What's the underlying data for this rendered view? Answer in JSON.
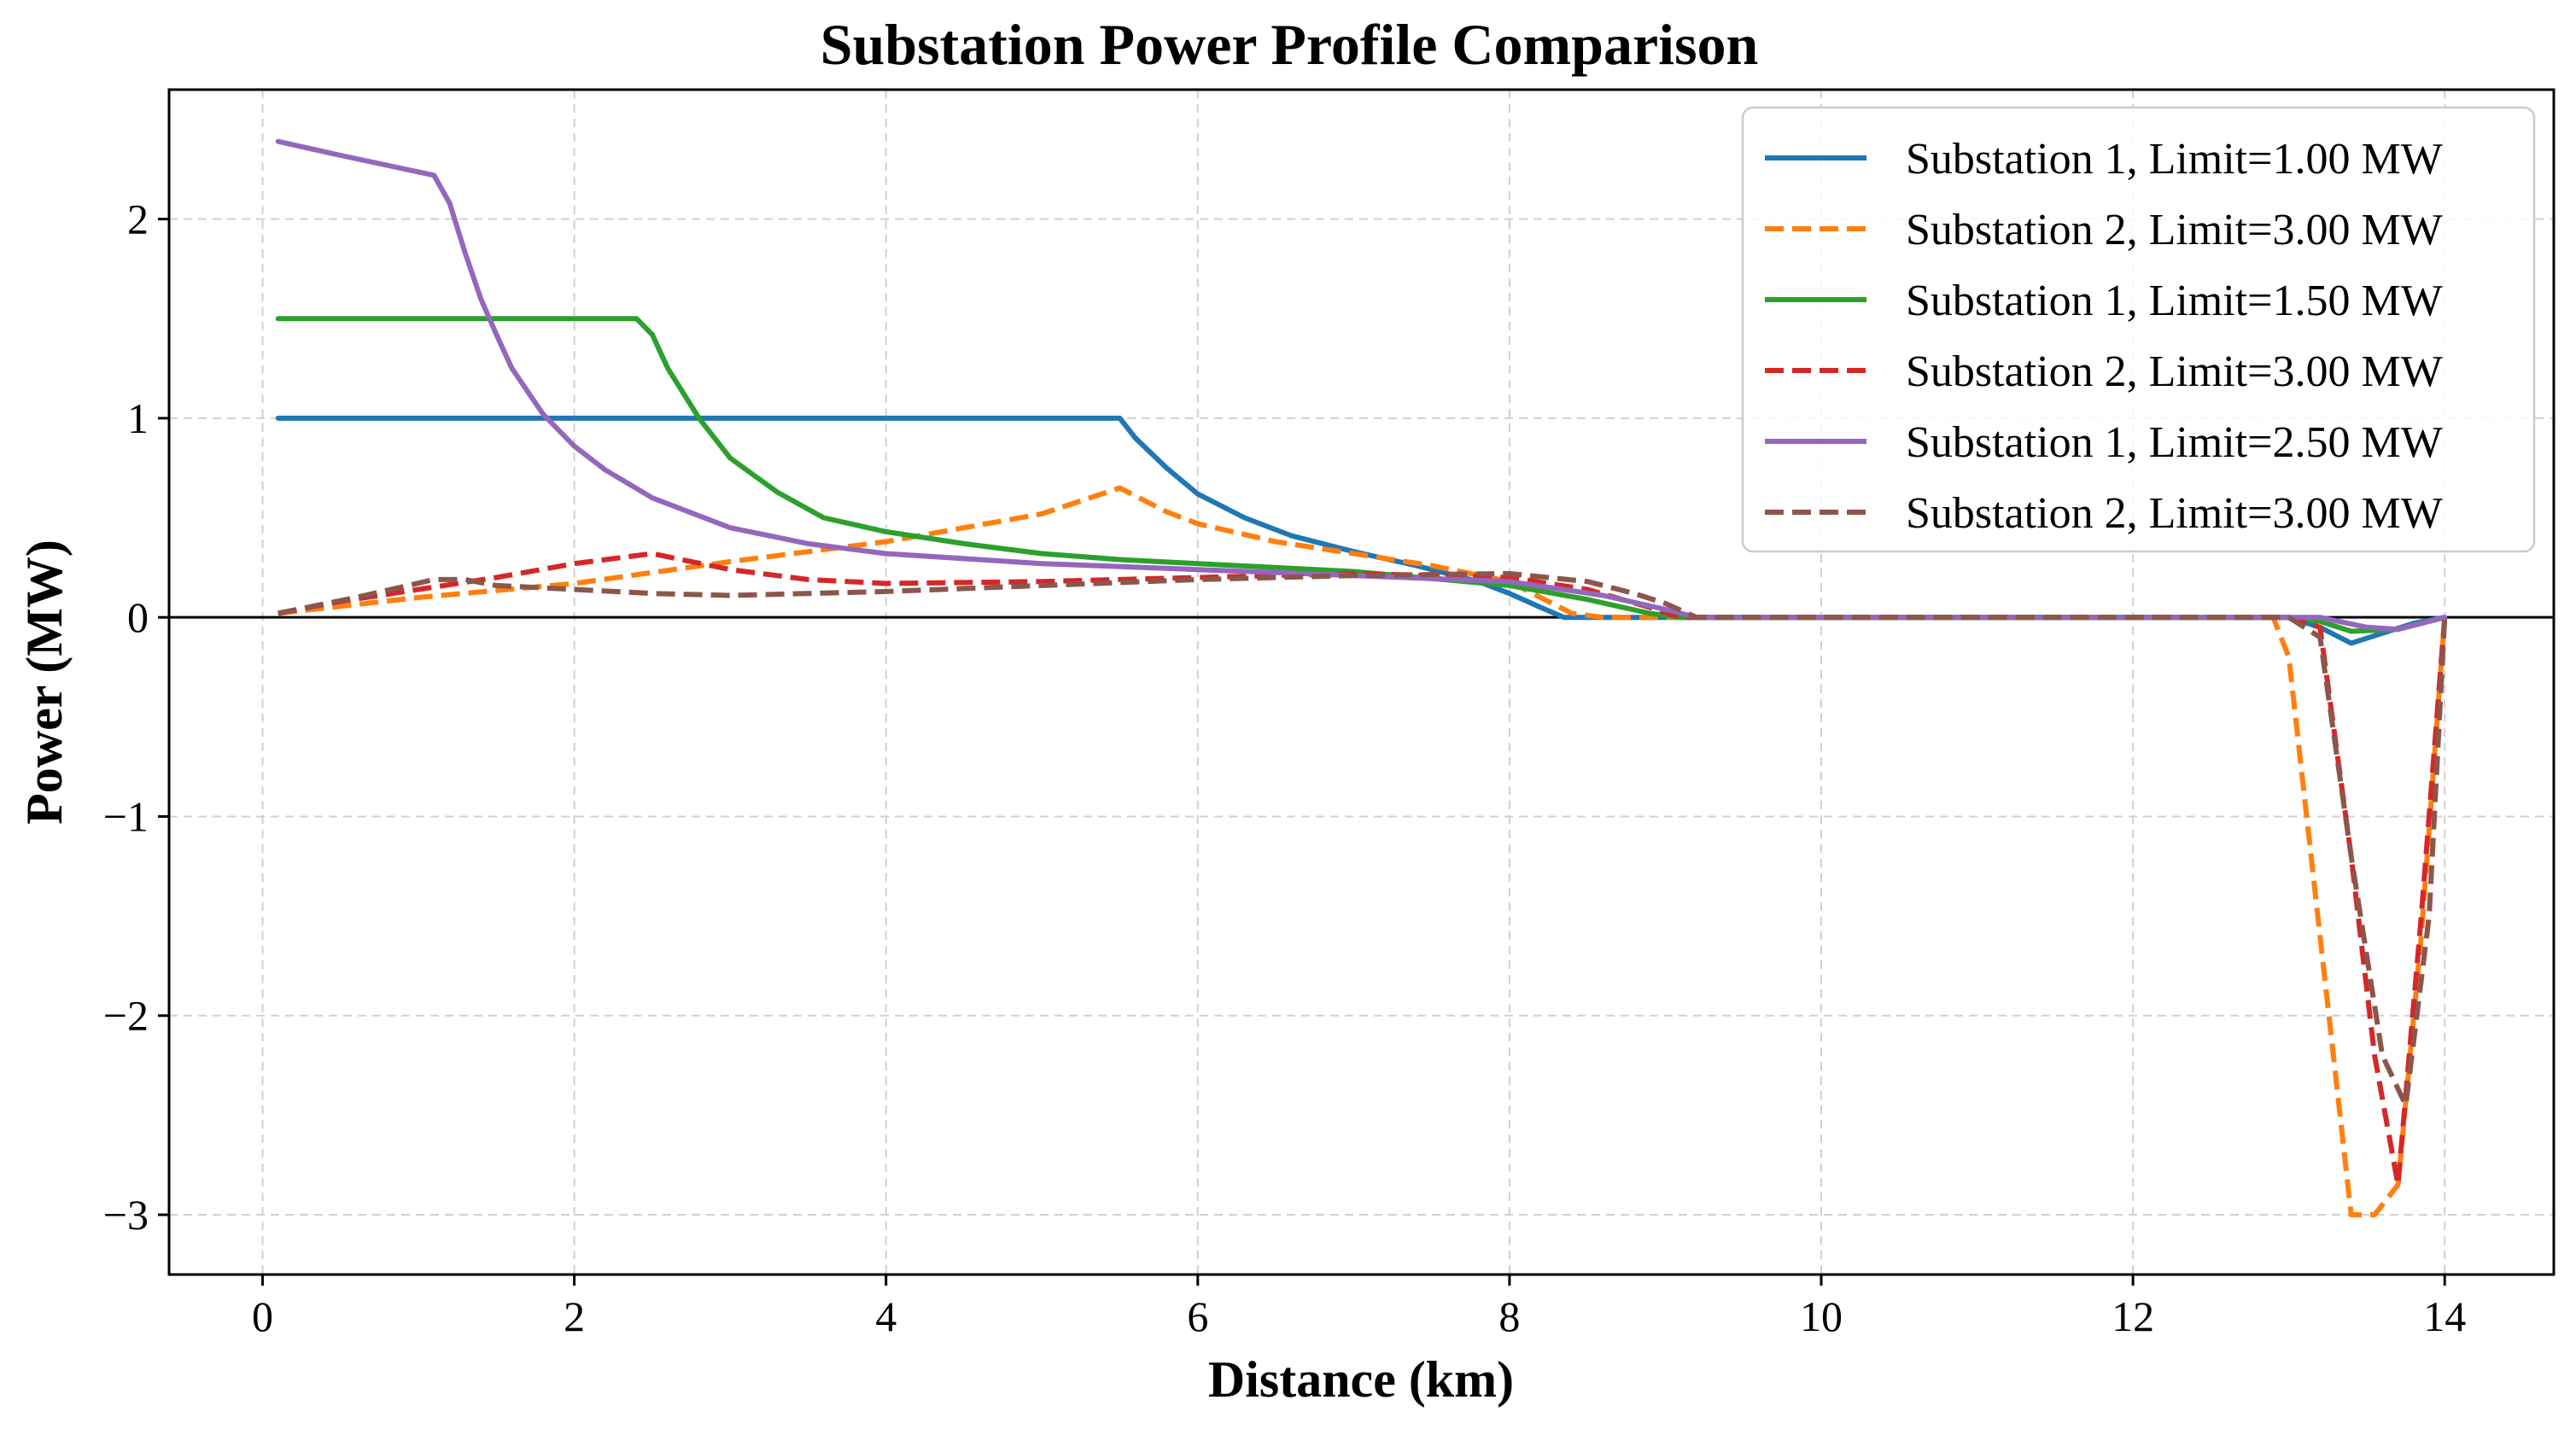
{
  "chart_data": {
    "type": "line",
    "title": "Substation Power Profile Comparison",
    "xlabel": "Distance (km)",
    "ylabel": "Power (MW)",
    "xlim": [
      -0.6,
      14.7
    ],
    "ylim": [
      -3.3,
      2.65
    ],
    "xticks": [
      0,
      2,
      4,
      6,
      8,
      10,
      12,
      14
    ],
    "yticks": [
      -3,
      -2,
      -1,
      0,
      1,
      2
    ],
    "xtick_labels": [
      "0",
      "2",
      "4",
      "6",
      "8",
      "10",
      "12",
      "14"
    ],
    "ytick_labels": [
      "−3",
      "−2",
      "−1",
      "0",
      "1",
      "2"
    ],
    "grid": true,
    "zero_line": true,
    "legend_position": "top-right",
    "series": [
      {
        "name": "Substation 1, Limit=1.00 MW",
        "color": "#1f77b4",
        "dash": "solid",
        "x": [
          0.1,
          1.0,
          2.0,
          3.0,
          4.0,
          5.0,
          5.5,
          5.6,
          5.8,
          6.0,
          6.3,
          6.6,
          7.0,
          7.4,
          7.8,
          8.0,
          8.2,
          8.35,
          9.0,
          10.0,
          11.0,
          12.0,
          13.0,
          13.2,
          13.4,
          13.6,
          13.8,
          14.0
        ],
        "values": [
          1.0,
          1.0,
          1.0,
          1.0,
          1.0,
          1.0,
          1.0,
          0.9,
          0.75,
          0.62,
          0.5,
          0.41,
          0.33,
          0.26,
          0.18,
          0.12,
          0.05,
          0.0,
          0.0,
          0.0,
          0.0,
          0.0,
          0.0,
          -0.05,
          -0.13,
          -0.08,
          -0.03,
          0.0
        ]
      },
      {
        "name": "Substation 2, Limit=3.00 MW",
        "color": "#ff7f0e",
        "dash": "dashed",
        "x": [
          0.1,
          1.0,
          2.0,
          3.0,
          4.0,
          5.0,
          5.5,
          5.8,
          6.0,
          6.5,
          7.0,
          7.5,
          8.0,
          8.2,
          8.4,
          8.6,
          9.0,
          10.0,
          11.0,
          12.0,
          12.9,
          13.0,
          13.2,
          13.4,
          13.55,
          13.7,
          13.85,
          14.0
        ],
        "values": [
          0.02,
          0.1,
          0.17,
          0.28,
          0.38,
          0.52,
          0.65,
          0.53,
          0.47,
          0.38,
          0.32,
          0.26,
          0.18,
          0.1,
          0.02,
          0.0,
          0.0,
          0.0,
          0.0,
          0.0,
          0.0,
          -0.2,
          -1.6,
          -3.0,
          -3.0,
          -2.85,
          -1.6,
          0.0
        ]
      },
      {
        "name": "Substation 1, Limit=1.50 MW",
        "color": "#2ca02c",
        "dash": "solid",
        "x": [
          0.1,
          1.0,
          2.0,
          2.4,
          2.5,
          2.6,
          2.8,
          3.0,
          3.3,
          3.6,
          4.0,
          4.5,
          5.0,
          5.5,
          6.0,
          7.0,
          8.0,
          8.5,
          8.9,
          9.1,
          10.0,
          11.0,
          12.0,
          13.0,
          13.2,
          13.4,
          13.7,
          14.0
        ],
        "values": [
          1.5,
          1.5,
          1.5,
          1.5,
          1.42,
          1.25,
          1.0,
          0.8,
          0.63,
          0.5,
          0.43,
          0.37,
          0.32,
          0.29,
          0.27,
          0.23,
          0.16,
          0.09,
          0.02,
          0.0,
          0.0,
          0.0,
          0.0,
          0.0,
          -0.02,
          -0.07,
          -0.06,
          0.0
        ]
      },
      {
        "name": "Substation 2, Limit=3.00 MW",
        "color": "#d62728",
        "dash": "dashed",
        "x": [
          0.1,
          0.5,
          1.0,
          1.5,
          2.0,
          2.5,
          3.0,
          3.5,
          4.0,
          5.0,
          6.0,
          7.0,
          8.0,
          8.5,
          8.9,
          9.1,
          10.0,
          11.0,
          12.0,
          13.0,
          13.2,
          13.4,
          13.55,
          13.7,
          13.85,
          14.0
        ],
        "values": [
          0.02,
          0.08,
          0.14,
          0.2,
          0.27,
          0.32,
          0.24,
          0.19,
          0.17,
          0.18,
          0.2,
          0.22,
          0.2,
          0.14,
          0.05,
          0.0,
          0.0,
          0.0,
          0.0,
          0.0,
          -0.05,
          -1.2,
          -2.2,
          -2.85,
          -1.5,
          0.0
        ]
      },
      {
        "name": "Substation 1, Limit=2.50 MW",
        "color": "#9467bd",
        "dash": "solid",
        "x": [
          0.1,
          0.5,
          1.1,
          1.2,
          1.3,
          1.4,
          1.5,
          1.6,
          1.8,
          2.0,
          2.2,
          2.5,
          3.0,
          3.5,
          4.0,
          5.0,
          6.0,
          7.0,
          8.0,
          8.6,
          9.0,
          9.2,
          10.0,
          11.0,
          12.0,
          13.2,
          13.5,
          13.7,
          14.0
        ],
        "values": [
          2.39,
          2.32,
          2.22,
          2.08,
          1.83,
          1.6,
          1.42,
          1.25,
          1.02,
          0.86,
          0.74,
          0.6,
          0.45,
          0.37,
          0.32,
          0.27,
          0.24,
          0.21,
          0.18,
          0.11,
          0.04,
          0.0,
          0.0,
          0.0,
          0.0,
          0.0,
          -0.05,
          -0.06,
          0.0
        ]
      },
      {
        "name": "Substation 2, Limit=3.00 MW",
        "color": "#8c564b",
        "dash": "dashed",
        "x": [
          0.1,
          0.6,
          1.1,
          1.3,
          1.5,
          2.0,
          2.5,
          3.0,
          4.0,
          5.0,
          6.0,
          7.0,
          8.0,
          8.5,
          8.8,
          9.0,
          9.2,
          10.0,
          11.0,
          12.0,
          13.0,
          13.2,
          13.4,
          13.6,
          13.75,
          13.9,
          14.0
        ],
        "values": [
          0.02,
          0.1,
          0.19,
          0.19,
          0.16,
          0.14,
          0.12,
          0.11,
          0.13,
          0.16,
          0.19,
          0.21,
          0.22,
          0.18,
          0.12,
          0.07,
          0.0,
          0.0,
          0.0,
          0.0,
          0.0,
          -0.1,
          -1.2,
          -2.2,
          -2.45,
          -1.5,
          0.0
        ]
      }
    ]
  }
}
